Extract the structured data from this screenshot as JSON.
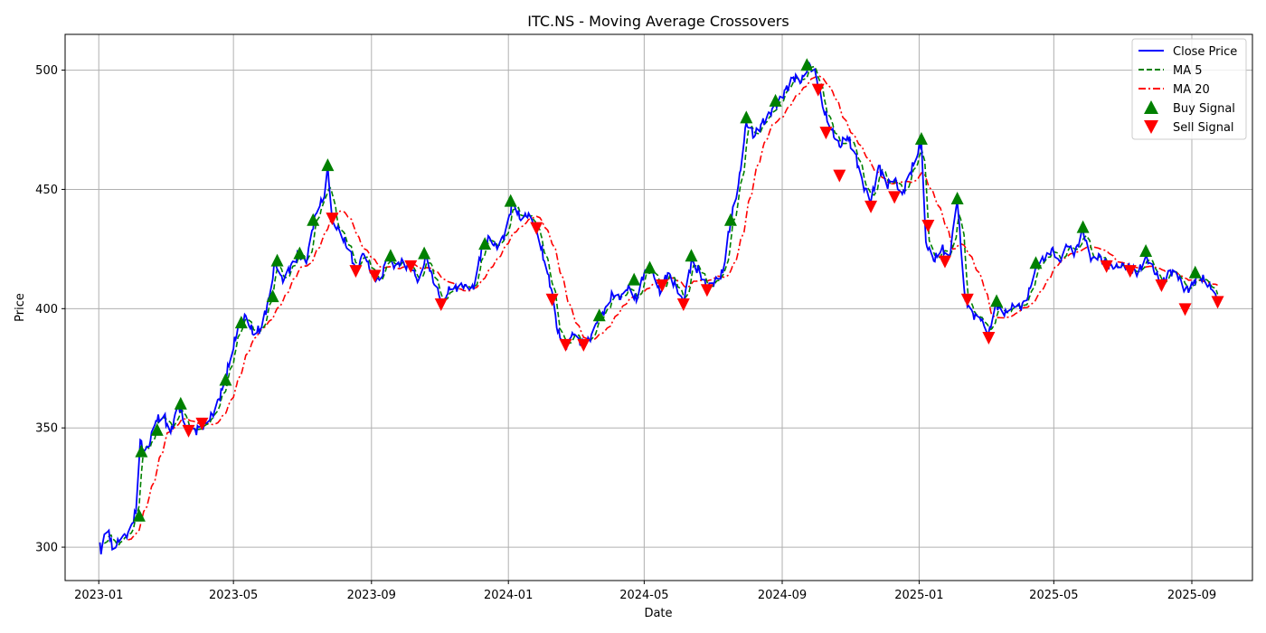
{
  "chart_data": {
    "type": "line",
    "title": "ITC.NS - Moving Average Crossovers",
    "xlabel": "Date",
    "ylabel": "Price",
    "xlim": [
      "2022-12-02",
      "2025-10-25"
    ],
    "ylim": [
      286,
      515
    ],
    "x_ticks": [
      "2023-01-01",
      "2023-05-01",
      "2023-09-01",
      "2024-01-01",
      "2024-05-01",
      "2024-09-01",
      "2025-01-01",
      "2025-05-01",
      "2025-09-01"
    ],
    "x_tick_labels": [
      "2023-01",
      "2023-05",
      "2023-09",
      "2024-01",
      "2024-05",
      "2024-09",
      "2025-01",
      "2025-05",
      "2025-09"
    ],
    "y_ticks": [
      300,
      350,
      400,
      450,
      500
    ],
    "grid": true,
    "legend_position": "top-right",
    "colors": {
      "close": "#0000ff",
      "ma5": "#008000",
      "ma20": "#ff0000",
      "buy": "#008000",
      "sell": "#ff0000",
      "grid": "#b0b0b0"
    },
    "series": [
      {
        "name": "Close Price",
        "style": "solid"
      },
      {
        "name": "MA 5",
        "style": "dashed"
      },
      {
        "name": "MA 20",
        "style": "dashdot"
      }
    ],
    "markers": [
      {
        "name": "Buy Signal",
        "shape": "triangle-up"
      },
      {
        "name": "Sell Signal",
        "shape": "triangle-down"
      }
    ],
    "close_anchors": [
      [
        "2023-01-02",
        302
      ],
      [
        "2023-01-03",
        297
      ],
      [
        "2023-01-05",
        303
      ],
      [
        "2023-01-10",
        307
      ],
      [
        "2023-01-13",
        299
      ],
      [
        "2023-01-20",
        303
      ],
      [
        "2023-01-27",
        306
      ],
      [
        "2023-02-03",
        314
      ],
      [
        "2023-02-07",
        345
      ],
      [
        "2023-02-09",
        340
      ],
      [
        "2023-02-14",
        342
      ],
      [
        "2023-02-21",
        353
      ],
      [
        "2023-02-28",
        355
      ],
      [
        "2023-03-06",
        348
      ],
      [
        "2023-03-13",
        360
      ],
      [
        "2023-03-20",
        350
      ],
      [
        "2023-03-28",
        349
      ],
      [
        "2023-04-07",
        352
      ],
      [
        "2023-04-14",
        357
      ],
      [
        "2023-04-21",
        366
      ],
      [
        "2023-04-28",
        378
      ],
      [
        "2023-05-05",
        392
      ],
      [
        "2023-05-12",
        397
      ],
      [
        "2023-05-19",
        389
      ],
      [
        "2023-05-26",
        392
      ],
      [
        "2023-06-02",
        405
      ],
      [
        "2023-06-07",
        420
      ],
      [
        "2023-06-14",
        411
      ],
      [
        "2023-06-21",
        418
      ],
      [
        "2023-06-28",
        423
      ],
      [
        "2023-07-05",
        419
      ],
      [
        "2023-07-12",
        438
      ],
      [
        "2023-07-17",
        443
      ],
      [
        "2023-07-21",
        447
      ],
      [
        "2023-07-24",
        460
      ],
      [
        "2023-07-28",
        437
      ],
      [
        "2023-08-04",
        432
      ],
      [
        "2023-08-11",
        425
      ],
      [
        "2023-08-18",
        417
      ],
      [
        "2023-08-25",
        423
      ],
      [
        "2023-09-01",
        415
      ],
      [
        "2023-09-08",
        412
      ],
      [
        "2023-09-15",
        421
      ],
      [
        "2023-09-22",
        418
      ],
      [
        "2023-09-29",
        420
      ],
      [
        "2023-10-06",
        416
      ],
      [
        "2023-10-13",
        412
      ],
      [
        "2023-10-20",
        422
      ],
      [
        "2023-10-27",
        410
      ],
      [
        "2023-11-03",
        403
      ],
      [
        "2023-11-10",
        408
      ],
      [
        "2023-11-17",
        409
      ],
      [
        "2023-11-24",
        410
      ],
      [
        "2023-12-01",
        408
      ],
      [
        "2023-12-08",
        425
      ],
      [
        "2023-12-15",
        430
      ],
      [
        "2023-12-22",
        425
      ],
      [
        "2023-12-29",
        432
      ],
      [
        "2024-01-05",
        445
      ],
      [
        "2024-01-12",
        437
      ],
      [
        "2024-01-19",
        440
      ],
      [
        "2024-01-26",
        433
      ],
      [
        "2024-02-02",
        420
      ],
      [
        "2024-02-09",
        407
      ],
      [
        "2024-02-14",
        390
      ],
      [
        "2024-02-21",
        385
      ],
      [
        "2024-02-28",
        389
      ],
      [
        "2024-03-06",
        386
      ],
      [
        "2024-03-13",
        387
      ],
      [
        "2024-03-20",
        394
      ],
      [
        "2024-03-27",
        400
      ],
      [
        "2024-04-03",
        406
      ],
      [
        "2024-04-10",
        404
      ],
      [
        "2024-04-17",
        410
      ],
      [
        "2024-04-24",
        403
      ],
      [
        "2024-05-01",
        415
      ],
      [
        "2024-05-08",
        417
      ],
      [
        "2024-05-15",
        406
      ],
      [
        "2024-05-22",
        415
      ],
      [
        "2024-05-29",
        410
      ],
      [
        "2024-06-05",
        402
      ],
      [
        "2024-06-12",
        420
      ],
      [
        "2024-06-19",
        416
      ],
      [
        "2024-06-26",
        408
      ],
      [
        "2024-07-03",
        412
      ],
      [
        "2024-07-10",
        415
      ],
      [
        "2024-07-17",
        436
      ],
      [
        "2024-07-24",
        452
      ],
      [
        "2024-07-31",
        478
      ],
      [
        "2024-08-07",
        472
      ],
      [
        "2024-08-14",
        478
      ],
      [
        "2024-08-21",
        482
      ],
      [
        "2024-08-28",
        486
      ],
      [
        "2024-09-04",
        492
      ],
      [
        "2024-09-11",
        497
      ],
      [
        "2024-09-18",
        495
      ],
      [
        "2024-09-25",
        503
      ],
      [
        "2024-10-01",
        498
      ],
      [
        "2024-10-08",
        483
      ],
      [
        "2024-10-15",
        475
      ],
      [
        "2024-10-22",
        468
      ],
      [
        "2024-10-29",
        472
      ],
      [
        "2024-11-05",
        465
      ],
      [
        "2024-11-12",
        452
      ],
      [
        "2024-11-19",
        445
      ],
      [
        "2024-11-26",
        460
      ],
      [
        "2024-12-03",
        452
      ],
      [
        "2024-12-10",
        454
      ],
      [
        "2024-12-17",
        448
      ],
      [
        "2024-12-24",
        457
      ],
      [
        "2024-12-31",
        465
      ],
      [
        "2025-01-03",
        470
      ],
      [
        "2025-01-07",
        428
      ],
      [
        "2025-01-14",
        420
      ],
      [
        "2025-01-21",
        425
      ],
      [
        "2025-01-28",
        422
      ],
      [
        "2025-02-04",
        445
      ],
      [
        "2025-02-11",
        404
      ],
      [
        "2025-02-18",
        398
      ],
      [
        "2025-02-25",
        395
      ],
      [
        "2025-03-04",
        390
      ],
      [
        "2025-03-11",
        402
      ],
      [
        "2025-03-18",
        397
      ],
      [
        "2025-03-25",
        402
      ],
      [
        "2025-04-01",
        400
      ],
      [
        "2025-04-08",
        405
      ],
      [
        "2025-04-15",
        418
      ],
      [
        "2025-04-22",
        420
      ],
      [
        "2025-04-29",
        425
      ],
      [
        "2025-05-06",
        420
      ],
      [
        "2025-05-13",
        426
      ],
      [
        "2025-05-20",
        424
      ],
      [
        "2025-05-27",
        433
      ],
      [
        "2025-06-03",
        420
      ],
      [
        "2025-06-10",
        423
      ],
      [
        "2025-06-17",
        418
      ],
      [
        "2025-06-24",
        417
      ],
      [
        "2025-07-01",
        419
      ],
      [
        "2025-07-08",
        416
      ],
      [
        "2025-07-15",
        415
      ],
      [
        "2025-07-22",
        422
      ],
      [
        "2025-07-29",
        416
      ],
      [
        "2025-08-05",
        410
      ],
      [
        "2025-08-12",
        416
      ],
      [
        "2025-08-19",
        414
      ],
      [
        "2025-08-26",
        408
      ],
      [
        "2025-09-02",
        410
      ],
      [
        "2025-09-05",
        414
      ],
      [
        "2025-09-12",
        412
      ],
      [
        "2025-09-19",
        408
      ],
      [
        "2025-09-24",
        403
      ]
    ],
    "buy_signals": [
      [
        "2023-02-06",
        313
      ],
      [
        "2023-02-08",
        340
      ],
      [
        "2023-02-22",
        349
      ],
      [
        "2023-03-15",
        360
      ],
      [
        "2023-04-24",
        370
      ],
      [
        "2023-05-08",
        394
      ],
      [
        "2023-06-05",
        405
      ],
      [
        "2023-06-09",
        420
      ],
      [
        "2023-06-29",
        423
      ],
      [
        "2023-07-11",
        437
      ],
      [
        "2023-07-24",
        460
      ],
      [
        "2023-09-18",
        422
      ],
      [
        "2023-10-18",
        423
      ],
      [
        "2023-12-11",
        427
      ],
      [
        "2024-01-03",
        445
      ],
      [
        "2024-03-22",
        397
      ],
      [
        "2024-04-22",
        412
      ],
      [
        "2024-05-06",
        417
      ],
      [
        "2024-06-12",
        422
      ],
      [
        "2024-07-17",
        437
      ],
      [
        "2024-07-31",
        480
      ],
      [
        "2024-08-26",
        487
      ],
      [
        "2024-09-23",
        502
      ],
      [
        "2025-01-03",
        471
      ],
      [
        "2025-02-04",
        446
      ],
      [
        "2025-03-11",
        403
      ],
      [
        "2025-04-15",
        419
      ],
      [
        "2025-05-27",
        434
      ],
      [
        "2025-07-22",
        424
      ],
      [
        "2025-09-04",
        415
      ]
    ],
    "sell_signals": [
      [
        "2023-03-22",
        349
      ],
      [
        "2023-04-03",
        352
      ],
      [
        "2023-07-28",
        438
      ],
      [
        "2023-08-18",
        416
      ],
      [
        "2023-09-04",
        414
      ],
      [
        "2023-10-06",
        418
      ],
      [
        "2023-11-02",
        402
      ],
      [
        "2024-01-26",
        434
      ],
      [
        "2024-02-09",
        404
      ],
      [
        "2024-02-21",
        385
      ],
      [
        "2024-03-08",
        385
      ],
      [
        "2024-05-17",
        410
      ],
      [
        "2024-06-05",
        402
      ],
      [
        "2024-06-26",
        408
      ],
      [
        "2024-10-03",
        492
      ],
      [
        "2024-10-10",
        474
      ],
      [
        "2024-10-22",
        456
      ],
      [
        "2024-11-19",
        443
      ],
      [
        "2024-12-10",
        447
      ],
      [
        "2025-01-09",
        435
      ],
      [
        "2025-01-24",
        420
      ],
      [
        "2025-02-13",
        404
      ],
      [
        "2025-03-04",
        388
      ],
      [
        "2025-06-17",
        418
      ],
      [
        "2025-07-08",
        416
      ],
      [
        "2025-08-05",
        410
      ],
      [
        "2025-08-26",
        400
      ],
      [
        "2025-09-24",
        403
      ]
    ]
  }
}
